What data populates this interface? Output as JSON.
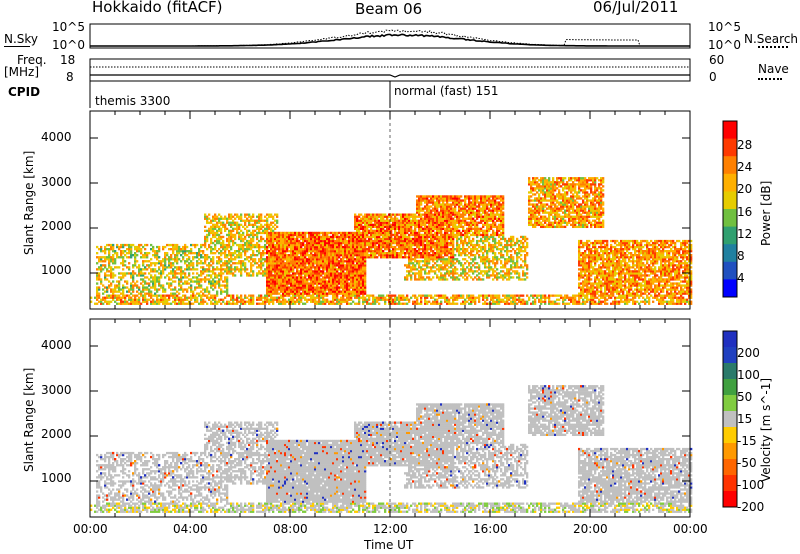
{
  "header": {
    "station": "Hokkaido (fitACF)",
    "beam": "Beam 06",
    "date": "06/Jul/2011"
  },
  "top_strip": {
    "left_label": "N.Sky",
    "left_ticks": [
      "10^5",
      "10^0"
    ],
    "right_label": "N.Search",
    "right_ticks": [
      "10^5",
      "10^0"
    ]
  },
  "freq_strip": {
    "left_label_line1": "Freq.",
    "left_label_line2": "[MHz]",
    "left_ticks": [
      "18",
      "8"
    ],
    "right_label": "Nave",
    "right_ticks": [
      "60",
      "0"
    ]
  },
  "cpid": {
    "label": "CPID",
    "segments": [
      {
        "name": "themis 3300",
        "start_hour": 0
      },
      {
        "name": "normal (fast) 151",
        "start_hour": 12
      }
    ]
  },
  "chart_data": [
    {
      "type": "heatmap",
      "ylabel": "Slant Range [km]",
      "y_ticks": [
        1000,
        2000,
        3000,
        4000
      ],
      "ylim": [
        200,
        4600
      ],
      "x_ticks": [
        "00:00",
        "04:00",
        "08:00",
        "12:00",
        "16:00",
        "20:00",
        "00:00"
      ],
      "xlim": [
        0,
        24
      ],
      "colorbar_label": "Power [dB]",
      "colorbar_ticks": [
        "28",
        "24",
        "20",
        "16",
        "12",
        "8",
        "4"
      ],
      "colorbar_colors": [
        "#ff0000",
        "#ff3a00",
        "#ff8000",
        "#ffb000",
        "#e6cc00",
        "#70c040",
        "#30a070",
        "#2080a0",
        "#2050c0",
        "#0000ff"
      ]
    },
    {
      "type": "heatmap",
      "ylabel": "Slant Range [km]",
      "y_ticks": [
        1000,
        2000,
        3000,
        4000
      ],
      "ylim": [
        200,
        4600
      ],
      "x_ticks": [
        "00:00",
        "04:00",
        "08:00",
        "12:00",
        "16:00",
        "20:00",
        "00:00"
      ],
      "xlim": [
        0,
        24
      ],
      "xlabel": "Time UT",
      "colorbar_label": "Velocity [m s^-1]",
      "colorbar_ticks": [
        "200",
        "100",
        "50",
        "15",
        "-15",
        "-50",
        "-100",
        "-200"
      ],
      "colorbar_colors": [
        "#2030c0",
        "#2040c0",
        "#2a7a6a",
        "#40a040",
        "#80cc40",
        "#c0c0c0",
        "#ffcc00",
        "#ff9900",
        "#ff6600",
        "#ff3300",
        "#ff0000"
      ]
    }
  ]
}
